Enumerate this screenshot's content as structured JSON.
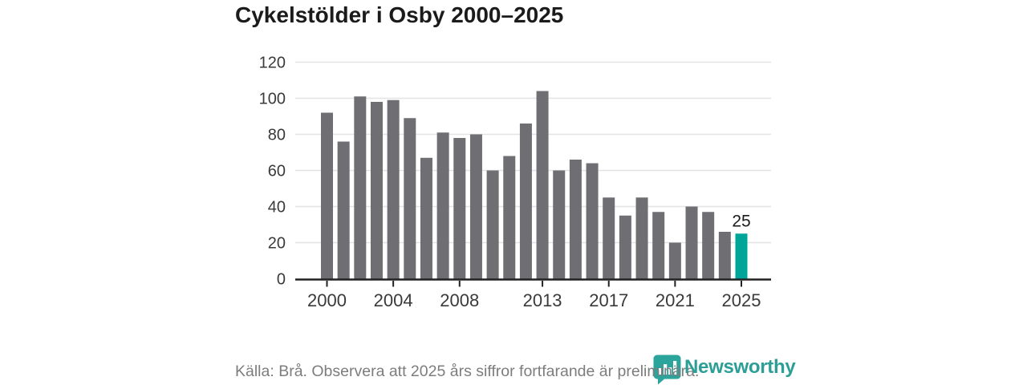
{
  "title": "Cykelstölder i Osby 2000–2025",
  "footer": {
    "source_note": "Källa: Brå. Observera att 2025 års siffror fortfarande är preliminära.",
    "brand": "Newsworthy"
  },
  "colors": {
    "bar": "#6f6e73",
    "highlight_bar": "#00a59a",
    "gridline": "#e3e3e3",
    "axis": "#222222",
    "axis_label": "#3a3a3a",
    "value_label": "#1b1b1b",
    "title_text": "#1b1b1b",
    "source_text": "#7d7d7d",
    "brand_teal": "#2ba59c"
  },
  "chart_data": {
    "type": "bar",
    "title": "Cykelstölder i Osby 2000–2025",
    "x": [
      2000,
      2001,
      2002,
      2003,
      2004,
      2005,
      2006,
      2007,
      2008,
      2009,
      2010,
      2011,
      2012,
      2013,
      2014,
      2015,
      2016,
      2017,
      2018,
      2019,
      2020,
      2021,
      2022,
      2023,
      2024,
      2025
    ],
    "values": [
      92,
      76,
      101,
      98,
      99,
      89,
      67,
      81,
      78,
      80,
      60,
      68,
      86,
      104,
      60,
      66,
      64,
      45,
      35,
      45,
      37,
      20,
      40,
      37,
      26,
      25
    ],
    "highlight_year": 2025,
    "value_label": {
      "year": 2025,
      "text": "25"
    },
    "yticks": [
      0,
      20,
      40,
      60,
      80,
      100,
      120
    ],
    "xticks": [
      2000,
      2004,
      2008,
      2013,
      2017,
      2021,
      2025
    ],
    "ylim": [
      0,
      120
    ],
    "grid": true,
    "legend": "none",
    "xlabel": "",
    "ylabel": ""
  }
}
